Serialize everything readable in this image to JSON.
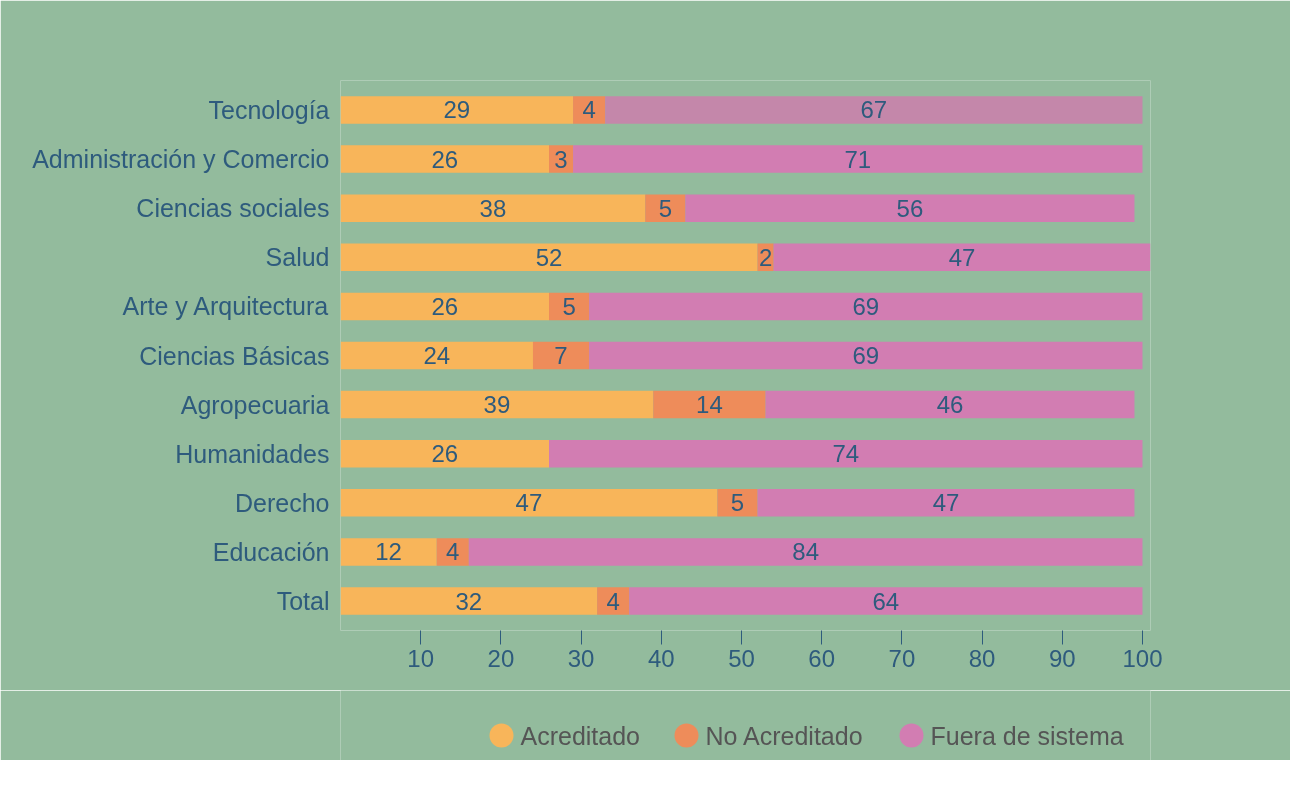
{
  "chart_data": {
    "type": "bar",
    "orientation": "horizontal",
    "stacked": true,
    "data_labels": true,
    "categories": [
      "Tecnología",
      "Administración y Comercio",
      "Ciencias sociales",
      "Salud",
      "Arte y Arquitectura",
      "Ciencias Básicas",
      "Agropecuaria",
      "Humanidades",
      "Derecho",
      "Educación",
      "Total"
    ],
    "series": [
      {
        "name": "Acreditado",
        "color": "#f8b55a",
        "values": [
          29,
          26,
          38,
          52,
          26,
          24,
          39,
          26,
          47,
          12,
          32
        ]
      },
      {
        "name": "No Acreditado",
        "color": "#ee8c5a",
        "values": [
          4,
          3,
          5,
          2,
          5,
          7,
          14,
          null,
          5,
          4,
          4
        ]
      },
      {
        "name": "Fuera de sistema",
        "color": "#d27db2",
        "colors": [
          "#c487aa",
          "#d27db2",
          "#d27db2",
          "#d27db2",
          "#d27db2",
          "#d27db2",
          "#d27db2",
          "#d27db2",
          "#d27db2",
          "#d27db2",
          "#d27db2"
        ],
        "values": [
          67,
          71,
          56,
          47,
          69,
          69,
          46,
          74,
          47,
          84,
          64
        ]
      }
    ],
    "xlim": [
      0,
      101
    ],
    "xticks": [
      10,
      20,
      30,
      40,
      50,
      60,
      70,
      80,
      90,
      100
    ],
    "grid": false,
    "legend": "bottom",
    "marker": "circle"
  }
}
